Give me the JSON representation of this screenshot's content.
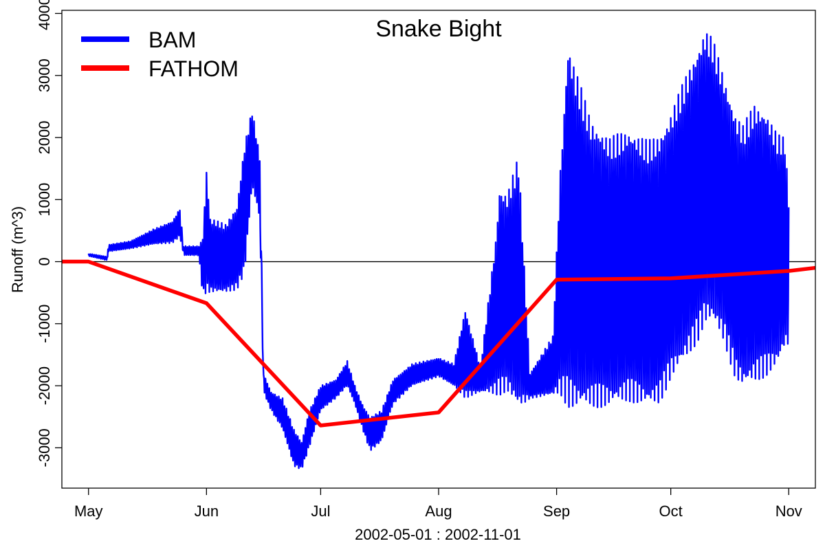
{
  "chart_data": {
    "type": "line",
    "title": "Snake Bight",
    "xlabel": "2002-05-01 : 2002-11-01",
    "ylabel": "Runoff (m^3)",
    "x_range": [
      "2002-04-24",
      "2002-11-08"
    ],
    "ylim": [
      -3650,
      4050
    ],
    "x_ticks": [
      {
        "date": "2002-05-01",
        "label": "May"
      },
      {
        "date": "2002-06-01",
        "label": "Jun"
      },
      {
        "date": "2002-07-01",
        "label": "Jul"
      },
      {
        "date": "2002-08-01",
        "label": "Aug"
      },
      {
        "date": "2002-09-01",
        "label": "Sep"
      },
      {
        "date": "2002-10-01",
        "label": "Oct"
      },
      {
        "date": "2002-11-01",
        "label": "Nov"
      }
    ],
    "y_ticks": [
      -3000,
      -2000,
      -1000,
      0,
      1000,
      2000,
      3000,
      4000
    ],
    "y_tick_labels": [
      "-3000",
      "-2000",
      "-1000",
      "0",
      "1000",
      "2000",
      "3000",
      "4000"
    ],
    "zero_line": true,
    "grid": false,
    "legend_position": "top-left",
    "series": [
      {
        "name": "BAM",
        "color": "#0000ff",
        "style": "oscillating (tidal) series; upper and lower envelopes read from the plot",
        "envelope": [
          {
            "date": "2002-05-01",
            "high": 130,
            "low": 90
          },
          {
            "date": "2002-05-06",
            "high": 80,
            "low": 20
          },
          {
            "date": "2002-05-06",
            "high": 270,
            "low": 160
          },
          {
            "date": "2002-05-12",
            "high": 330,
            "low": 210
          },
          {
            "date": "2002-05-18",
            "high": 520,
            "low": 280
          },
          {
            "date": "2002-05-23",
            "high": 650,
            "low": 300
          },
          {
            "date": "2002-05-25",
            "high": 860,
            "low": 400
          },
          {
            "date": "2002-05-26",
            "high": 250,
            "low": 100
          },
          {
            "date": "2002-05-30",
            "high": 250,
            "low": 100
          },
          {
            "date": "2002-05-31",
            "high": 400,
            "low": -550
          },
          {
            "date": "2002-06-01",
            "high": 1500,
            "low": -500
          },
          {
            "date": "2002-06-02",
            "high": 700,
            "low": -500
          },
          {
            "date": "2002-06-06",
            "high": 600,
            "low": -500
          },
          {
            "date": "2002-06-09",
            "high": 900,
            "low": -450
          },
          {
            "date": "2002-06-11",
            "high": 1900,
            "low": -200
          },
          {
            "date": "2002-06-13",
            "high": 2450,
            "low": 1200
          },
          {
            "date": "2002-06-15",
            "high": 1700,
            "low": 700
          },
          {
            "date": "2002-06-16",
            "high": -1800,
            "low": -2100
          },
          {
            "date": "2002-06-18",
            "high": -2100,
            "low": -2400
          },
          {
            "date": "2002-06-21",
            "high": -2200,
            "low": -2700
          },
          {
            "date": "2002-06-24",
            "high": -2700,
            "low": -3300
          },
          {
            "date": "2002-06-26",
            "high": -2900,
            "low": -3350
          },
          {
            "date": "2002-06-28",
            "high": -2400,
            "low": -3000
          },
          {
            "date": "2002-07-01",
            "high": -2000,
            "low": -2400
          },
          {
            "date": "2002-07-05",
            "high": -1900,
            "low": -2200
          },
          {
            "date": "2002-07-08",
            "high": -1600,
            "low": -2000
          },
          {
            "date": "2002-07-10",
            "high": -2000,
            "low": -2300
          },
          {
            "date": "2002-07-12",
            "high": -2300,
            "low": -2700
          },
          {
            "date": "2002-07-14",
            "high": -2500,
            "low": -3050
          },
          {
            "date": "2002-07-17",
            "high": -2400,
            "low": -2900
          },
          {
            "date": "2002-07-20",
            "high": -1900,
            "low": -2300
          },
          {
            "date": "2002-07-25",
            "high": -1650,
            "low": -2000
          },
          {
            "date": "2002-08-01",
            "high": -1550,
            "low": -1850
          },
          {
            "date": "2002-08-05",
            "high": -1650,
            "low": -2000
          },
          {
            "date": "2002-08-08",
            "high": -750,
            "low": -2200
          },
          {
            "date": "2002-08-12",
            "high": -1700,
            "low": -2100
          },
          {
            "date": "2002-08-16",
            "high": 380,
            "low": -2150
          },
          {
            "date": "2002-08-17",
            "high": 1200,
            "low": -2150
          },
          {
            "date": "2002-08-19",
            "high": 1100,
            "low": -2100
          },
          {
            "date": "2002-08-22",
            "high": 1700,
            "low": -2400
          },
          {
            "date": "2002-08-25",
            "high": -1800,
            "low": -2200
          },
          {
            "date": "2002-08-31",
            "high": -1200,
            "low": -2150
          },
          {
            "date": "2002-09-02",
            "high": 1550,
            "low": -2150
          },
          {
            "date": "2002-09-04",
            "high": 3550,
            "low": -2350
          },
          {
            "date": "2002-09-06",
            "high": 3100,
            "low": -2400
          },
          {
            "date": "2002-09-10",
            "high": 2300,
            "low": -2350
          },
          {
            "date": "2002-09-15",
            "high": 2000,
            "low": -2350
          },
          {
            "date": "2002-09-20",
            "high": 2150,
            "low": -2250
          },
          {
            "date": "2002-09-25",
            "high": 1950,
            "low": -2350
          },
          {
            "date": "2002-09-28",
            "high": 2050,
            "low": -2300
          },
          {
            "date": "2002-10-01",
            "high": 2400,
            "low": -1900
          },
          {
            "date": "2002-10-05",
            "high": 3000,
            "low": -1600
          },
          {
            "date": "2002-10-08",
            "high": 3450,
            "low": -1300
          },
          {
            "date": "2002-10-10",
            "high": 3750,
            "low": -1000
          },
          {
            "date": "2002-10-12",
            "high": 3600,
            "low": -1000
          },
          {
            "date": "2002-10-15",
            "high": 3000,
            "low": -1300
          },
          {
            "date": "2002-10-18",
            "high": 2400,
            "low": -1900
          },
          {
            "date": "2002-10-20",
            "high": 2200,
            "low": -2050
          },
          {
            "date": "2002-10-23",
            "high": 2550,
            "low": -1950
          },
          {
            "date": "2002-10-26",
            "high": 2450,
            "low": -1850
          },
          {
            "date": "2002-10-29",
            "high": 2050,
            "low": -1700
          },
          {
            "date": "2002-10-31",
            "high": 2000,
            "low": -1400
          },
          {
            "date": "2002-11-01",
            "high": 1050,
            "low": -1350
          }
        ]
      },
      {
        "name": "FATHOM",
        "color": "#ff0000",
        "x": [
          "2002-04-24",
          "2002-05-01",
          "2002-06-01",
          "2002-07-01",
          "2002-08-01",
          "2002-09-01",
          "2002-10-01",
          "2002-11-01",
          "2002-11-08"
        ],
        "y": [
          0,
          0,
          -670,
          -2640,
          -2430,
          -290,
          -270,
          -150,
          -100
        ]
      }
    ]
  }
}
